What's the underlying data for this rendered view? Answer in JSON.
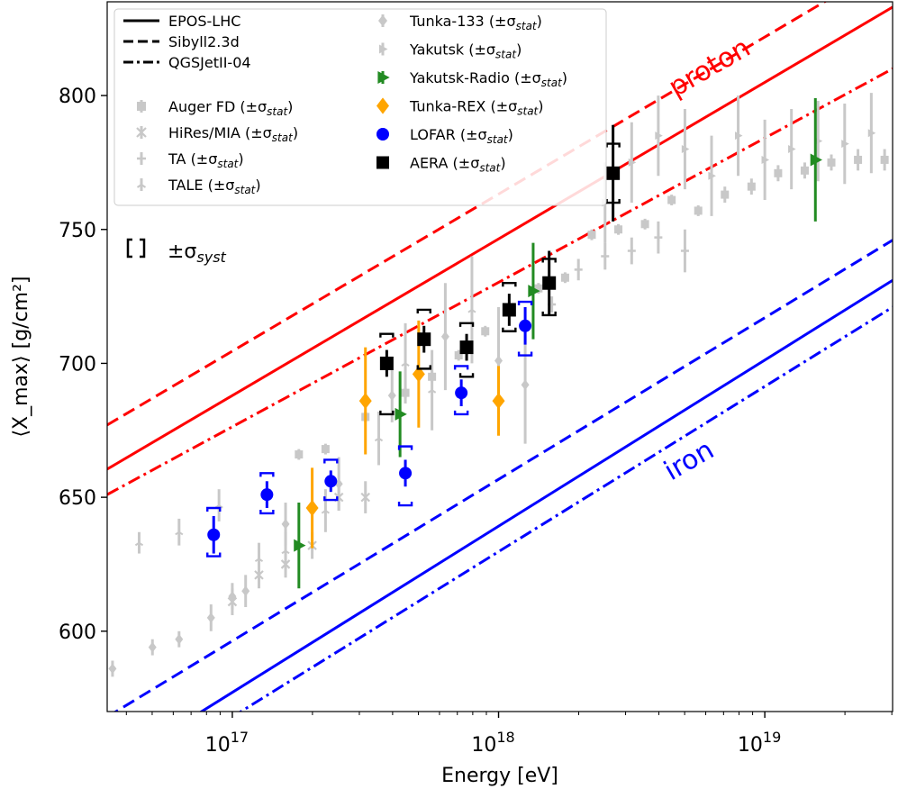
{
  "chart_data": {
    "type": "scatter",
    "title": "",
    "xlabel": "Energy [eV]",
    "ylabel": "⟨X_max⟩ [g/cm²]",
    "xscale": "log",
    "xlim_log10": [
      16.53,
      19.48
    ],
    "ylim": [
      570,
      835
    ],
    "x_tick_labels": [
      {
        "exp": 17,
        "label": "10",
        "sup": "17"
      },
      {
        "exp": 18,
        "label": "10",
        "sup": "18"
      },
      {
        "exp": 19,
        "label": "10",
        "sup": "19"
      }
    ],
    "y_ticks": [
      600,
      650,
      700,
      750,
      800
    ],
    "legend": {
      "models": [
        {
          "name": "EPOS-LHC",
          "style": "solid"
        },
        {
          "name": "Sibyll2.3d",
          "style": "dashed"
        },
        {
          "name": "QGSJetII-04",
          "style": "dashdot"
        }
      ],
      "datasets": [
        {
          "key": "auger",
          "label": "Auger FD (±σ",
          "sub": "stat",
          "close": ")"
        },
        {
          "key": "hires",
          "label": "HiRes/MIA (±σ",
          "sub": "stat",
          "close": ")"
        },
        {
          "key": "ta",
          "label": "TA (±σ",
          "sub": "stat",
          "close": ")"
        },
        {
          "key": "tale",
          "label": "TALE (±σ",
          "sub": "stat",
          "close": ")"
        },
        {
          "key": "tunka133",
          "label": "Tunka-133 (±σ",
          "sub": "stat",
          "close": ")"
        },
        {
          "key": "yakutsk",
          "label": "Yakutsk (±σ",
          "sub": "stat",
          "close": ")"
        },
        {
          "key": "yakradio",
          "label": "Yakutsk-Radio (±σ",
          "sub": "stat",
          "close": ")"
        },
        {
          "key": "tunkarex",
          "label": "Tunka-REX (±σ",
          "sub": "stat",
          "close": ")"
        },
        {
          "key": "lofar",
          "label": "LOFAR (±σ",
          "sub": "stat",
          "close": ")"
        },
        {
          "key": "aera",
          "label": "AERA (±σ",
          "sub": "stat",
          "close": ")"
        }
      ]
    },
    "syst_label": {
      "text": "±σ",
      "sub": "syst"
    },
    "annotations": {
      "proton": "proton",
      "iron": "iron"
    },
    "colors": {
      "proton": "#ff0000",
      "iron": "#0000ff",
      "gray": "#c8c8c8",
      "yakradio": "#228b22",
      "tunkarex": "#ffa500",
      "lofar": "#0000ff",
      "aera": "#000000"
    },
    "models": [
      {
        "composition": "proton",
        "model": "EPOS-LHC",
        "style": "solid",
        "points": [
          [
            16.53,
            660.5
          ],
          [
            19.48,
            833
          ]
        ]
      },
      {
        "composition": "proton",
        "model": "Sibyll2.3d",
        "style": "dashed",
        "points": [
          [
            16.53,
            677
          ],
          [
            19.48,
            850
          ]
        ]
      },
      {
        "composition": "proton",
        "model": "QGSJetII-04",
        "style": "dashdot",
        "points": [
          [
            16.53,
            651
          ],
          [
            19.48,
            810
          ]
        ]
      },
      {
        "composition": "iron",
        "model": "Sibyll2.3d",
        "style": "dashed",
        "points": [
          [
            16.53,
            568
          ],
          [
            19.48,
            746
          ]
        ]
      },
      {
        "composition": "iron",
        "model": "EPOS-LHC",
        "style": "solid",
        "points": [
          [
            16.53,
            548
          ],
          [
            19.48,
            731
          ]
        ]
      },
      {
        "composition": "iron",
        "model": "QGSJetII-04",
        "style": "dashdot",
        "points": [
          [
            16.53,
            539
          ],
          [
            19.48,
            721
          ]
        ]
      }
    ],
    "series": [
      {
        "name": "Auger FD",
        "key": "auger",
        "marker": "square",
        "points": [
          [
            17.25,
            666,
            2
          ],
          [
            17.35,
            668,
            2
          ],
          [
            17.5,
            680,
            2
          ],
          [
            17.65,
            689,
            2
          ],
          [
            17.75,
            695,
            2
          ],
          [
            17.85,
            703,
            2
          ],
          [
            17.95,
            712,
            2
          ],
          [
            18.05,
            720,
            2
          ],
          [
            18.15,
            728,
            2
          ],
          [
            18.25,
            732,
            2
          ],
          [
            18.35,
            748,
            2
          ],
          [
            18.45,
            750,
            2
          ],
          [
            18.55,
            752,
            2
          ],
          [
            18.65,
            761,
            2
          ],
          [
            18.75,
            757,
            2
          ],
          [
            18.85,
            763,
            3
          ],
          [
            18.95,
            766,
            3
          ],
          [
            19.05,
            771,
            3
          ],
          [
            19.15,
            772,
            3
          ],
          [
            19.25,
            775,
            3
          ],
          [
            19.35,
            776,
            4
          ],
          [
            19.45,
            776,
            4
          ]
        ]
      },
      {
        "name": "HiRes/MIA",
        "key": "hires",
        "marker": "x",
        "points": [
          [
            17.0,
            611,
            5
          ],
          [
            17.1,
            621,
            5
          ],
          [
            17.2,
            625,
            5
          ],
          [
            17.3,
            632,
            5
          ],
          [
            17.4,
            650,
            5
          ],
          [
            17.5,
            650,
            6
          ]
        ]
      },
      {
        "name": "TA",
        "key": "ta",
        "marker": "plus",
        "points": [
          [
            18.2,
            722,
            3
          ],
          [
            18.3,
            735,
            4
          ],
          [
            18.4,
            740,
            5
          ],
          [
            18.5,
            742,
            5
          ],
          [
            18.6,
            747,
            6
          ],
          [
            18.7,
            742,
            8
          ]
        ]
      },
      {
        "name": "TALE",
        "key": "tale",
        "marker": "tri",
        "points": [
          [
            16.65,
            633,
            4
          ],
          [
            16.8,
            637,
            5
          ],
          [
            16.95,
            647,
            6
          ],
          [
            17.1,
            627,
            6
          ],
          [
            17.2,
            630,
            7
          ],
          [
            17.35,
            645,
            8
          ],
          [
            17.55,
            672,
            10
          ],
          [
            17.65,
            700,
            15
          ],
          [
            17.75,
            690,
            15
          ],
          [
            17.9,
            720,
            20
          ]
        ]
      },
      {
        "name": "Tunka-133",
        "key": "tunka133",
        "marker": "diamond",
        "points": [
          [
            16.55,
            586,
            3
          ],
          [
            16.7,
            594,
            3
          ],
          [
            16.8,
            597,
            3
          ],
          [
            16.92,
            605,
            5
          ],
          [
            17.0,
            613,
            5
          ],
          [
            17.05,
            615,
            6
          ],
          [
            17.2,
            640,
            8
          ],
          [
            17.4,
            655,
            10
          ],
          [
            17.6,
            688,
            10
          ],
          [
            17.8,
            710,
            20
          ],
          [
            18.0,
            701,
            20
          ],
          [
            18.1,
            692,
            22
          ]
        ]
      },
      {
        "name": "Yakutsk",
        "key": "yakutsk",
        "marker": "tri_right",
        "points": [
          [
            18.4,
            760,
            15
          ],
          [
            18.5,
            775,
            15
          ],
          [
            18.6,
            785,
            15
          ],
          [
            18.7,
            780,
            15
          ],
          [
            18.8,
            770,
            15
          ],
          [
            18.9,
            785,
            15
          ],
          [
            19.0,
            776,
            15
          ],
          [
            19.1,
            780,
            15
          ],
          [
            19.2,
            783,
            15
          ],
          [
            19.3,
            782,
            15
          ],
          [
            19.4,
            786,
            15
          ]
        ]
      },
      {
        "name": "Yakutsk-Radio",
        "key": "yakradio",
        "marker": "tri_right",
        "points": [
          [
            17.25,
            632,
            16
          ],
          [
            17.63,
            681,
            16
          ],
          [
            18.13,
            727,
            18
          ],
          [
            19.19,
            776,
            23
          ]
        ]
      },
      {
        "name": "Tunka-REX",
        "key": "tunkarex",
        "marker": "diamond",
        "points": [
          [
            17.3,
            646,
            15
          ],
          [
            17.5,
            686,
            20
          ],
          [
            17.7,
            696,
            20
          ],
          [
            18.0,
            686,
            13
          ]
        ]
      },
      {
        "name": "LOFAR",
        "key": "lofar",
        "marker": "circle",
        "points": [
          [
            16.93,
            636,
            7,
            10,
            8
          ],
          [
            17.13,
            651,
            5,
            8,
            7
          ],
          [
            17.37,
            656,
            4,
            8,
            7
          ],
          [
            17.65,
            659,
            5,
            10,
            12
          ],
          [
            17.86,
            689,
            5,
            10,
            8
          ],
          [
            18.1,
            714,
            7,
            9,
            11
          ]
        ]
      },
      {
        "name": "AERA",
        "key": "aera",
        "marker": "square",
        "points": [
          [
            17.58,
            700,
            5,
            11,
            19
          ],
          [
            17.72,
            709,
            5,
            11,
            11
          ],
          [
            17.88,
            706,
            5,
            9,
            11
          ],
          [
            18.04,
            720,
            6,
            10,
            8
          ],
          [
            18.19,
            730,
            12,
            9,
            12
          ],
          [
            18.43,
            771,
            18,
            11,
            11
          ]
        ]
      }
    ]
  }
}
